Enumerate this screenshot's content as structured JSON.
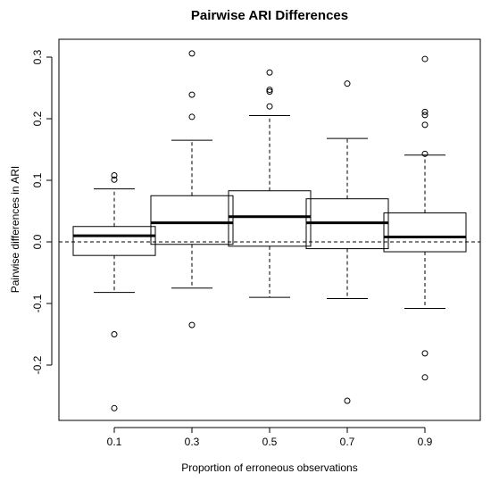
{
  "chart_data": {
    "type": "boxplot",
    "title": "Pairwise ARI Differences",
    "xlabel": "Proportion of erroneous observations",
    "ylabel": "Pairwise differences in ARI",
    "categories": [
      "0.1",
      "0.3",
      "0.5",
      "0.7",
      "0.9"
    ],
    "yticks": [
      -0.2,
      -0.1,
      0.0,
      0.1,
      0.2,
      0.3
    ],
    "ytick_labels": [
      "-0.2",
      "-0.1",
      "0.0",
      "0.1",
      "0.2",
      "0.3"
    ],
    "ylim": [
      -0.29,
      0.325
    ],
    "reference_line": 0,
    "boxes": [
      {
        "category": "0.1",
        "whisker_low": -0.082,
        "q1": -0.022,
        "median": 0.01,
        "q3": 0.025,
        "whisker_high": 0.086,
        "outliers": [
          0.108,
          0.101,
          -0.15,
          -0.27
        ]
      },
      {
        "category": "0.3",
        "whisker_low": -0.075,
        "q1": -0.004,
        "median": 0.031,
        "q3": 0.075,
        "whisker_high": 0.165,
        "outliers": [
          0.306,
          0.239,
          0.203,
          -0.135
        ]
      },
      {
        "category": "0.5",
        "whisker_low": -0.09,
        "q1": -0.007,
        "median": 0.041,
        "q3": 0.083,
        "whisker_high": 0.205,
        "outliers": [
          0.275,
          0.247,
          0.244,
          0.22
        ]
      },
      {
        "category": "0.7",
        "whisker_low": -0.092,
        "q1": -0.011,
        "median": 0.031,
        "q3": 0.07,
        "whisker_high": 0.168,
        "outliers": [
          0.257,
          -0.258
        ]
      },
      {
        "category": "0.9",
        "whisker_low": -0.108,
        "q1": -0.016,
        "median": 0.008,
        "q3": 0.047,
        "whisker_high": 0.141,
        "outliers": [
          0.297,
          0.211,
          0.206,
          0.19,
          0.143,
          -0.181,
          -0.22
        ]
      }
    ],
    "grid": false,
    "legend": "none",
    "colors": {
      "stroke": "#000000",
      "background": "#ffffff"
    }
  }
}
